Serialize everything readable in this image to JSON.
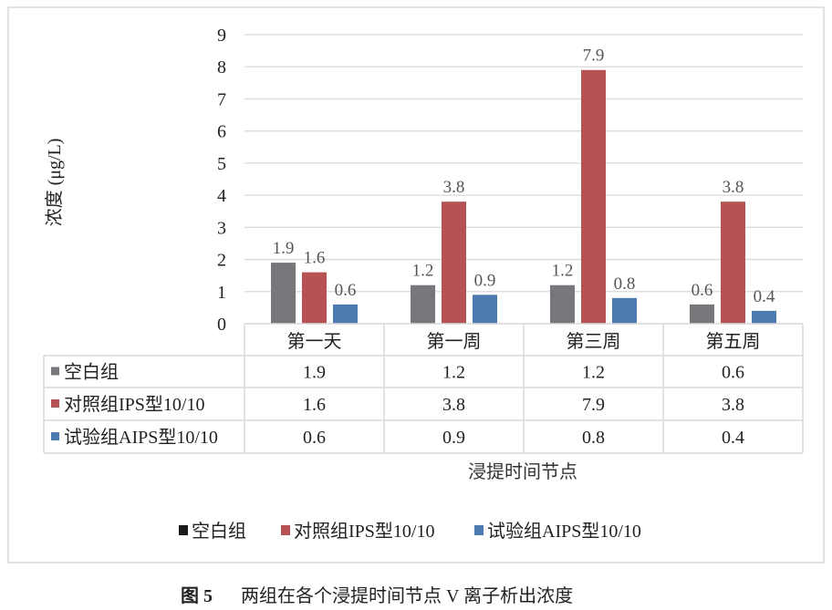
{
  "chart_data": {
    "type": "bar",
    "ylabel": "浓度 (μg/L)",
    "xlabel": "浸提时间节点",
    "ylim": [
      0,
      9
    ],
    "yticks": [
      0,
      1,
      2,
      3,
      4,
      5,
      6,
      7,
      8,
      9
    ],
    "grid": true,
    "legend_position": "bottom",
    "categories": [
      "第一天",
      "第一周",
      "第三周",
      "第五周"
    ],
    "series": [
      {
        "name": "空白组",
        "values": [
          1.9,
          1.2,
          1.2,
          0.6
        ],
        "color": "#77777b"
      },
      {
        "name": "对照组IPS型10/10",
        "values": [
          1.6,
          3.8,
          7.9,
          3.8
        ],
        "color": "#b65154"
      },
      {
        "name": "试验组AIPS型10/10",
        "values": [
          0.6,
          0.9,
          0.8,
          0.4
        ],
        "color": "#4d7bb0"
      }
    ],
    "data_table": true,
    "legend_colors": [
      "#1a1a1a",
      "#b65154",
      "#4d7bb0"
    ]
  },
  "caption": {
    "label": "图 5",
    "text": "两组在各个浸提时间节点 V 离子析出浓度"
  }
}
